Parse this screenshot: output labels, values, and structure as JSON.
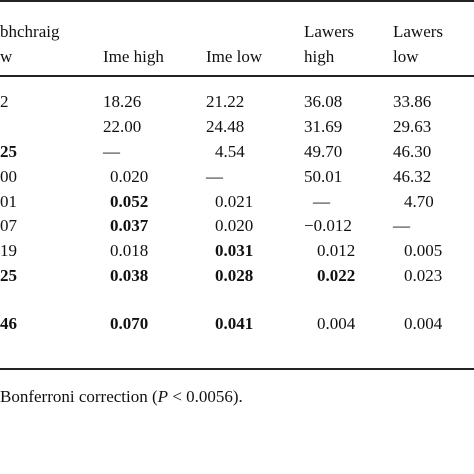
{
  "header": {
    "col1_line1": "bhchraig",
    "col1_line2": "w",
    "col2": "Ime high",
    "col3": "Ime low",
    "col4_line1": "Lawers",
    "col4_line2": "high",
    "col5_line1": "Lawers",
    "col5_line2": "low"
  },
  "rows": [
    [
      {
        "t": "2",
        "b": false
      },
      {
        "t": "18.26",
        "b": false
      },
      {
        "t": "21.22",
        "b": false
      },
      {
        "t": "36.08",
        "b": false
      },
      {
        "t": "33.86",
        "b": false
      }
    ],
    [
      {
        "t": "",
        "b": false
      },
      {
        "t": "22.00",
        "b": false
      },
      {
        "t": "24.48",
        "b": false
      },
      {
        "t": "31.69",
        "b": false
      },
      {
        "t": "29.63",
        "b": false
      }
    ],
    [
      {
        "t": "25",
        "b": true
      },
      {
        "t": "—",
        "b": false
      },
      {
        "t": "4.54",
        "b": false
      },
      {
        "t": "49.70",
        "b": false
      },
      {
        "t": "46.30",
        "b": false
      }
    ],
    [
      {
        "t": "00",
        "b": false
      },
      {
        "t": "0.020",
        "b": false
      },
      {
        "t": "—",
        "b": false
      },
      {
        "t": "50.01",
        "b": false
      },
      {
        "t": "46.32",
        "b": false
      }
    ],
    [
      {
        "t": "01",
        "b": false
      },
      {
        "t": "0.052",
        "b": true
      },
      {
        "t": "0.021",
        "b": false
      },
      {
        "t": "—",
        "b": false
      },
      {
        "t": "4.70",
        "b": false
      }
    ],
    [
      {
        "t": "07",
        "b": false
      },
      {
        "t": "0.037",
        "b": true
      },
      {
        "t": "0.020",
        "b": false
      },
      {
        "t": "−0.012",
        "b": false
      },
      {
        "t": "—",
        "b": false
      }
    ],
    [
      {
        "t": "19",
        "b": false
      },
      {
        "t": "0.018",
        "b": false
      },
      {
        "t": "0.031",
        "b": true
      },
      {
        "t": "0.012",
        "b": false
      },
      {
        "t": "0.005",
        "b": false
      }
    ],
    [
      {
        "t": "25",
        "b": true
      },
      {
        "t": "0.038",
        "b": true
      },
      {
        "t": "0.028",
        "b": true
      },
      {
        "t": "0.022",
        "b": true
      },
      {
        "t": "0.023",
        "b": false
      }
    ],
    [
      {
        "t": "46",
        "b": true
      },
      {
        "t": "0.070",
        "b": true
      },
      {
        "t": "0.041",
        "b": true
      },
      {
        "t": "0.004",
        "b": false
      },
      {
        "t": "0.004",
        "b": false
      }
    ]
  ],
  "footnote": {
    "prefix": "Bonferroni correction (",
    "p": "P",
    "suffix": " < 0.0056)."
  }
}
